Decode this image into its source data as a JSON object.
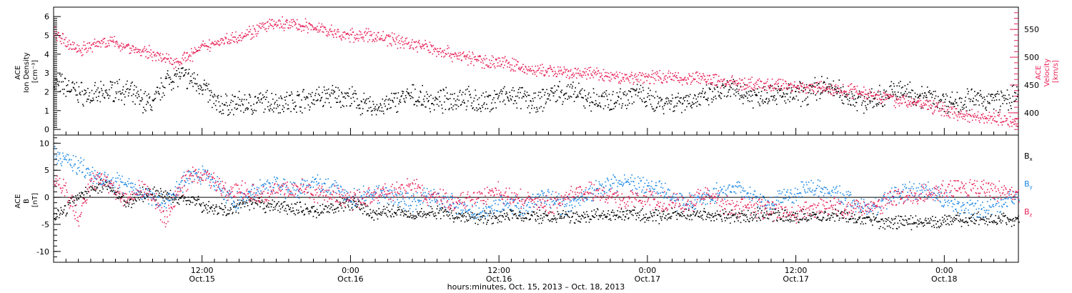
{
  "chart_data": [
    {
      "type": "scatter",
      "panel": "plasma",
      "time_range_hours": [
        0,
        78
      ],
      "ylabel_left": [
        "ACE",
        "Ion Density",
        "[cm⁻³]"
      ],
      "ylabel_right": [
        "ACE",
        "Velocity",
        "[km/s]"
      ],
      "ylim_left": [
        -0.3,
        6.5
      ],
      "ylim_right": [
        360,
        590
      ],
      "yticks_left": [
        "0",
        "1",
        "2",
        "3",
        "4",
        "5",
        "6"
      ],
      "yticks_right": [
        "400",
        "450",
        "500",
        "550"
      ],
      "colors": {
        "density": "#000000",
        "velocity": "#e8245a"
      },
      "series": [
        {
          "name": "Ion Density",
          "axis": "left",
          "color": "#000000",
          "x": [
            0,
            1,
            2,
            3,
            4,
            5,
            6,
            7,
            8,
            9,
            10,
            11,
            12,
            13,
            14,
            15,
            16,
            17,
            18,
            19,
            20,
            21,
            22,
            23,
            24,
            25,
            26,
            27,
            28,
            29,
            30,
            31,
            32,
            33,
            34,
            35,
            36,
            37,
            38,
            39,
            40,
            41,
            42,
            43,
            44,
            45,
            46,
            47,
            48,
            49,
            50,
            51,
            52,
            53,
            54,
            55,
            56,
            57,
            58,
            59,
            60,
            61,
            62,
            63,
            64,
            65,
            66,
            67,
            68,
            69,
            70,
            71,
            72,
            73,
            74,
            75,
            76,
            77,
            78
          ],
          "values": [
            2.5,
            2.3,
            2.0,
            1.8,
            1.9,
            2.2,
            2.0,
            1.6,
            1.4,
            2.6,
            2.9,
            2.7,
            2.4,
            1.4,
            1.3,
            1.4,
            1.4,
            1.5,
            1.5,
            1.5,
            1.6,
            1.7,
            1.8,
            1.8,
            1.7,
            1.3,
            1.2,
            1.3,
            1.7,
            1.8,
            1.6,
            1.5,
            1.6,
            1.8,
            1.5,
            1.4,
            1.8,
            1.7,
            1.7,
            1.3,
            1.9,
            2.0,
            1.9,
            1.7,
            1.5,
            1.6,
            1.7,
            2.0,
            1.6,
            1.5,
            1.5,
            1.6,
            1.6,
            1.8,
            2.0,
            2.1,
            1.9,
            1.8,
            2.0,
            1.8,
            1.9,
            2.0,
            2.3,
            2.2,
            1.8,
            1.6,
            1.5,
            1.8,
            2.1,
            2.0,
            1.8,
            1.7,
            1.5,
            1.5,
            1.6,
            1.6,
            1.6,
            1.6,
            1.8
          ]
        },
        {
          "name": "Velocity",
          "axis": "right",
          "color": "#e8245a",
          "x": [
            0,
            1,
            2,
            3,
            4,
            5,
            6,
            7,
            8,
            9,
            10,
            11,
            12,
            13,
            14,
            15,
            16,
            17,
            18,
            19,
            20,
            21,
            22,
            23,
            24,
            25,
            26,
            27,
            28,
            29,
            30,
            31,
            32,
            33,
            34,
            35,
            36,
            37,
            38,
            39,
            40,
            41,
            42,
            43,
            44,
            45,
            46,
            47,
            48,
            49,
            50,
            51,
            52,
            53,
            54,
            55,
            56,
            57,
            58,
            59,
            60,
            61,
            62,
            63,
            64,
            65,
            66,
            67,
            68,
            69,
            70,
            71,
            72,
            73,
            74,
            75,
            76,
            77,
            78
          ],
          "values": [
            545,
            525,
            515,
            520,
            530,
            525,
            520,
            510,
            508,
            496,
            494,
            504,
            518,
            527,
            533,
            540,
            546,
            556,
            560,
            560,
            557,
            555,
            550,
            540,
            540,
            540,
            538,
            534,
            530,
            524,
            520,
            514,
            508,
            502,
            497,
            493,
            492,
            488,
            480,
            476,
            476,
            472,
            470,
            472,
            470,
            465,
            465,
            464,
            466,
            466,
            465,
            462,
            464,
            460,
            458,
            455,
            452,
            451,
            450,
            452,
            448,
            446,
            446,
            442,
            442,
            440,
            436,
            430,
            424,
            420,
            418,
            412,
            406,
            400,
            396,
            394,
            392,
            388,
            386
          ]
        }
      ]
    },
    {
      "type": "scatter",
      "panel": "magnetic",
      "time_range_hours": [
        0,
        78
      ],
      "ylabel": [
        "ACE",
        "B",
        "[nT]"
      ],
      "ylim": [
        -12,
        11.5
      ],
      "yticks": [
        "-10",
        "-5",
        "0",
        "5",
        "10"
      ],
      "zero_line": true,
      "colors": {
        "bx": "#000000",
        "by": "#1e88e5",
        "bz": "#e8245a"
      },
      "series": [
        {
          "name": "Bx",
          "color": "#000000",
          "x": [
            0,
            1,
            2,
            3,
            4,
            5,
            6,
            7,
            8,
            9,
            10,
            11,
            12,
            13,
            14,
            15,
            16,
            17,
            18,
            19,
            20,
            21,
            22,
            23,
            24,
            25,
            26,
            27,
            28,
            29,
            30,
            31,
            32,
            33,
            34,
            35,
            36,
            37,
            38,
            39,
            40,
            41,
            42,
            43,
            44,
            45,
            46,
            47,
            48,
            49,
            50,
            51,
            52,
            53,
            54,
            55,
            56,
            57,
            58,
            59,
            60,
            61,
            62,
            63,
            64,
            65,
            66,
            67,
            68,
            69,
            70,
            71,
            72,
            73,
            74,
            75,
            76,
            77,
            78
          ],
          "values": [
            -3.5,
            -2.0,
            0.5,
            1.5,
            2.5,
            1.0,
            -1.0,
            0.5,
            1.0,
            0.5,
            -0.5,
            0.0,
            -1.5,
            -2.0,
            -2.5,
            -1.5,
            -1.0,
            -1.5,
            -1.5,
            -2.0,
            -2.0,
            -2.5,
            -2.0,
            -1.5,
            -1.0,
            -2.0,
            -3.0,
            -2.5,
            -2.5,
            -3.0,
            -3.0,
            -2.5,
            -3.0,
            -3.5,
            -3.5,
            -3.5,
            -3.5,
            -3.0,
            -3.5,
            -3.5,
            -3.5,
            -3.5,
            -3.5,
            -3.5,
            -3.0,
            -3.5,
            -3.0,
            -3.0,
            -3.5,
            -3.5,
            -3.0,
            -3.0,
            -3.0,
            -3.0,
            -3.5,
            -3.5,
            -3.5,
            -3.0,
            -3.0,
            -3.5,
            -3.5,
            -3.5,
            -3.5,
            -3.0,
            -3.5,
            -4.0,
            -4.0,
            -4.5,
            -4.5,
            -4.5,
            -4.5,
            -4.5,
            -4.5,
            -4.0,
            -4.0,
            -4.0,
            -4.0,
            -4.0,
            -4.0
          ]
        },
        {
          "name": "By",
          "color": "#1e88e5",
          "x": [
            0,
            1,
            2,
            3,
            4,
            5,
            6,
            7,
            8,
            9,
            10,
            11,
            12,
            13,
            14,
            15,
            16,
            17,
            18,
            19,
            20,
            21,
            22,
            23,
            24,
            25,
            26,
            27,
            28,
            29,
            30,
            31,
            32,
            33,
            34,
            35,
            36,
            37,
            38,
            39,
            40,
            41,
            42,
            43,
            44,
            45,
            46,
            47,
            48,
            49,
            50,
            51,
            52,
            53,
            54,
            55,
            56,
            57,
            58,
            59,
            60,
            61,
            62,
            63,
            64,
            65,
            66,
            67,
            68,
            69,
            70,
            71,
            72,
            73,
            74,
            75,
            76,
            77,
            78
          ],
          "values": [
            8.0,
            7.0,
            6.0,
            4.5,
            3.5,
            3.0,
            2.0,
            1.0,
            0.0,
            -1.0,
            2.0,
            4.0,
            4.5,
            3.0,
            0.5,
            -1.0,
            1.0,
            2.0,
            2.5,
            1.5,
            2.0,
            3.0,
            2.5,
            1.5,
            0.0,
            0.5,
            1.0,
            0.5,
            0.0,
            -1.0,
            0.5,
            0.0,
            -1.0,
            -1.5,
            -2.5,
            -2.0,
            -1.5,
            -1.0,
            -2.0,
            -0.5,
            0.0,
            -1.5,
            -1.0,
            0.5,
            1.5,
            2.5,
            3.0,
            2.5,
            2.0,
            1.5,
            0.0,
            -1.0,
            -0.5,
            0.0,
            1.5,
            2.0,
            1.0,
            0.0,
            -1.0,
            0.5,
            0.5,
            2.0,
            2.0,
            1.0,
            0.0,
            -1.5,
            -2.0,
            -0.5,
            0.5,
            1.0,
            1.5,
            1.0,
            -0.5,
            -1.5,
            -2.0,
            -2.5,
            -1.5,
            -0.5,
            0.0
          ]
        },
        {
          "name": "Bz",
          "color": "#e8245a",
          "x": [
            0,
            1,
            2,
            3,
            4,
            5,
            6,
            7,
            8,
            9,
            10,
            11,
            12,
            13,
            14,
            15,
            16,
            17,
            18,
            19,
            20,
            21,
            22,
            23,
            24,
            25,
            26,
            27,
            28,
            29,
            30,
            31,
            32,
            33,
            34,
            35,
            36,
            37,
            38,
            39,
            40,
            41,
            42,
            43,
            44,
            45,
            46,
            47,
            48,
            49,
            50,
            51,
            52,
            53,
            54,
            55,
            56,
            57,
            58,
            59,
            60,
            61,
            62,
            63,
            64,
            65,
            66,
            67,
            68,
            69,
            70,
            71,
            72,
            73,
            74,
            75,
            76,
            77,
            78
          ],
          "values": [
            4.0,
            1.0,
            -4.0,
            3.0,
            3.5,
            1.0,
            0.0,
            2.0,
            0.0,
            -4.5,
            1.0,
            4.0,
            4.5,
            3.0,
            1.0,
            1.5,
            1.0,
            0.5,
            1.5,
            1.5,
            2.0,
            1.0,
            0.5,
            0.0,
            -0.5,
            0.0,
            0.5,
            1.0,
            1.5,
            2.0,
            0.5,
            0.0,
            -1.0,
            -0.5,
            0.0,
            0.5,
            1.0,
            0.0,
            -0.5,
            -1.0,
            -1.5,
            0.0,
            0.5,
            1.5,
            1.0,
            0.5,
            -1.0,
            0.0,
            -0.5,
            -1.0,
            -0.5,
            -1.5,
            0.0,
            0.5,
            -1.0,
            -2.0,
            -1.5,
            -2.0,
            -2.0,
            -3.0,
            -3.0,
            -2.5,
            -1.5,
            -1.5,
            -2.0,
            -1.5,
            -2.0,
            -1.0,
            0.0,
            0.0,
            0.5,
            1.0,
            1.5,
            1.5,
            2.0,
            1.5,
            1.5,
            1.0,
            1.0
          ]
        }
      ],
      "legend": [
        {
          "main": "B",
          "sub": "x",
          "color": "#000000"
        },
        {
          "main": "B",
          "sub": "y",
          "color": "#1e88e5"
        },
        {
          "main": "B",
          "sub": "z",
          "color": "#e8245a"
        }
      ]
    }
  ],
  "time_axis": {
    "ticks": [
      {
        "hour": 12,
        "time": "12:00",
        "date": "Oct.15"
      },
      {
        "hour": 24,
        "time": "0:00",
        "date": "Oct.16"
      },
      {
        "hour": 36,
        "time": "12:00",
        "date": "Oct.16"
      },
      {
        "hour": 48,
        "time": "0:00",
        "date": "Oct.17"
      },
      {
        "hour": 60,
        "time": "12:00",
        "date": "Oct.17"
      },
      {
        "hour": 72,
        "time": "0:00",
        "date": "Oct.18"
      }
    ],
    "xlabel": "hours:minutes, Oct. 15, 2013 – Oct. 18, 2013"
  }
}
